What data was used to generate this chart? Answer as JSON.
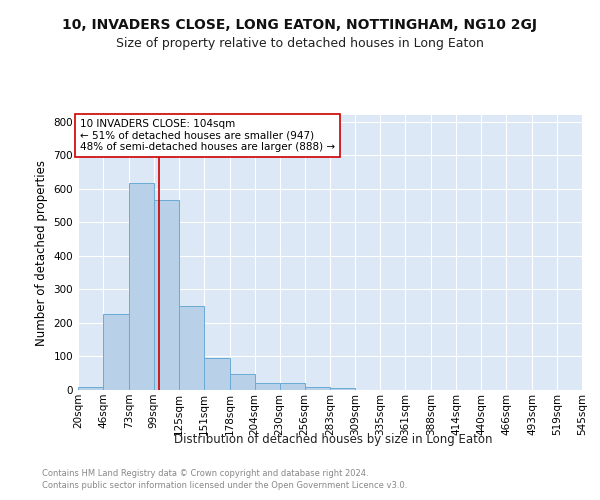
{
  "title": "10, INVADERS CLOSE, LONG EATON, NOTTINGHAM, NG10 2GJ",
  "subtitle": "Size of property relative to detached houses in Long Eaton",
  "xlabel": "Distribution of detached houses by size in Long Eaton",
  "ylabel": "Number of detached properties",
  "bar_values": [
    10,
    228,
    617,
    567,
    250,
    95,
    47,
    22,
    22,
    8,
    5,
    0,
    0,
    0,
    0,
    0,
    0,
    0,
    0,
    0
  ],
  "bin_edges": [
    20,
    46,
    73,
    99,
    125,
    151,
    178,
    204,
    230,
    256,
    283,
    309,
    335,
    361,
    388,
    414,
    440,
    466,
    493,
    519,
    545
  ],
  "tick_labels": [
    "20sqm",
    "46sqm",
    "73sqm",
    "99sqm",
    "125sqm",
    "151sqm",
    "178sqm",
    "204sqm",
    "230sqm",
    "256sqm",
    "283sqm",
    "309sqm",
    "335sqm",
    "361sqm",
    "388sqm",
    "414sqm",
    "440sqm",
    "466sqm",
    "493sqm",
    "519sqm",
    "545sqm"
  ],
  "bar_color": "#b8d0e8",
  "bar_edge_color": "#6aaad4",
  "vline_x": 104,
  "vline_color": "#cc0000",
  "annotation_text": "10 INVADERS CLOSE: 104sqm\n← 51% of detached houses are smaller (947)\n48% of semi-detached houses are larger (888) →",
  "annotation_box_color": "#cc0000",
  "annotation_bg": "#ffffff",
  "ylim": [
    0,
    820
  ],
  "yticks": [
    0,
    100,
    200,
    300,
    400,
    500,
    600,
    700,
    800
  ],
  "background_color": "#dce8f5",
  "grid_color": "#ffffff",
  "footer_line1": "Contains HM Land Registry data © Crown copyright and database right 2024.",
  "footer_line2": "Contains public sector information licensed under the Open Government Licence v3.0.",
  "title_fontsize": 10,
  "subtitle_fontsize": 9,
  "axis_label_fontsize": 8.5,
  "tick_fontsize": 7.5,
  "ylabel_fontsize": 8.5
}
